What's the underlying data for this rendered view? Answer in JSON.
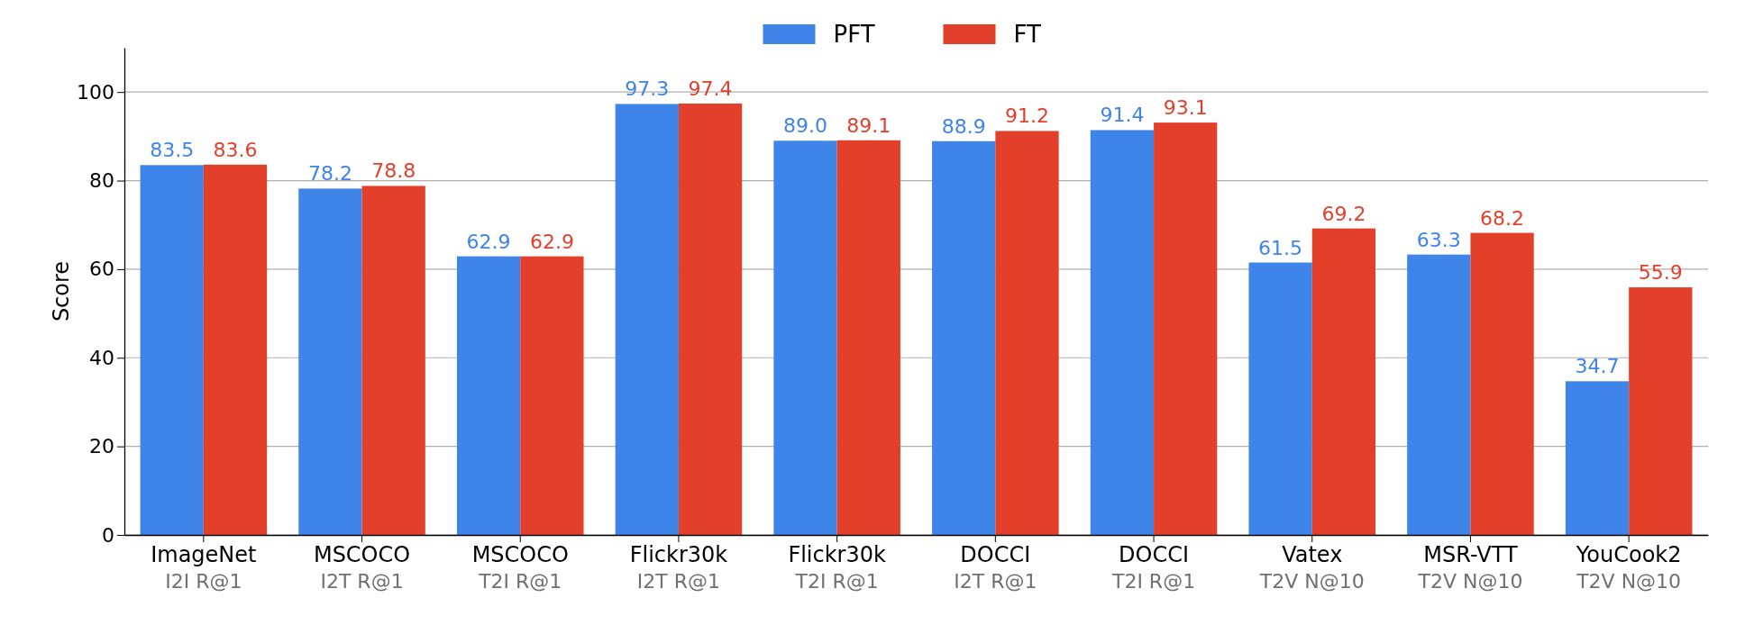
{
  "chart_data": {
    "type": "bar",
    "ylabel": "Score",
    "categories": [
      "ImageNet\nI2I R@1",
      "MSCOCO\nI2T R@1",
      "MSCOCO\nT2I R@1",
      "Flickr30k\nI2T R@1",
      "Flickr30k\nT2I R@1",
      "DOCCI\nI2T R@1",
      "DOCCI\nT2I R@1",
      "Vatex\nT2V N@10",
      "MSR-VTT\nT2V N@10",
      "YouCook2\nT2V N@10"
    ],
    "series": [
      {
        "name": "PFT",
        "color": "#3f84e8",
        "values": [
          83.5,
          78.2,
          62.9,
          97.3,
          89.0,
          88.9,
          91.4,
          61.5,
          63.3,
          34.7
        ],
        "value_labels": [
          "83.5",
          "78.2",
          "62.9",
          "97.3",
          "89.0",
          "88.9",
          "91.4",
          "61.5",
          "63.3",
          "34.7"
        ]
      },
      {
        "name": "FT",
        "color": "#e3402b",
        "values": [
          83.6,
          78.8,
          62.9,
          97.4,
          89.1,
          91.2,
          93.1,
          69.2,
          68.2,
          55.9
        ],
        "value_labels": [
          "83.6",
          "78.8",
          "62.9",
          "97.4",
          "89.1",
          "91.2",
          "93.1",
          "69.2",
          "68.2",
          "55.9"
        ]
      }
    ],
    "ylim": [
      0,
      110
    ],
    "yticks": [
      0,
      20,
      40,
      60,
      80,
      100
    ],
    "grid": "y",
    "legend": "top"
  }
}
